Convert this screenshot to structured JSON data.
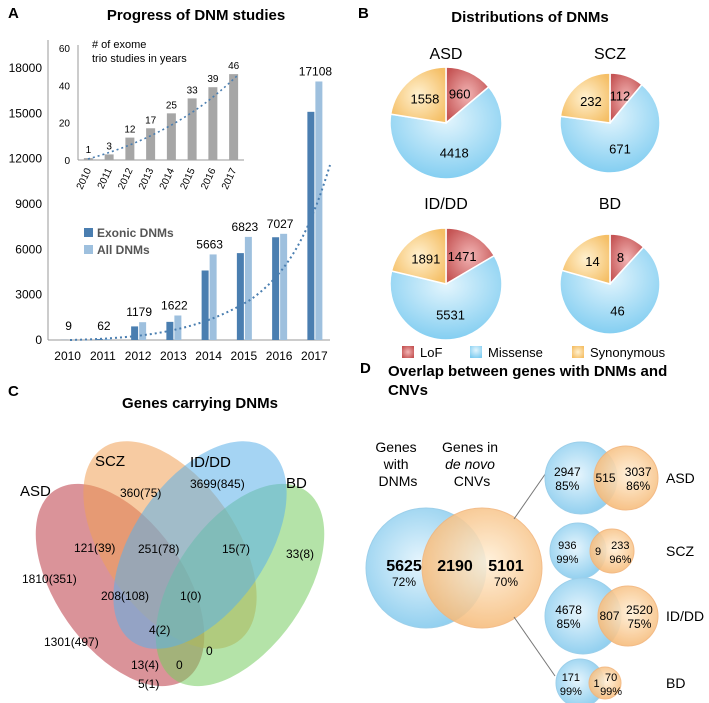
{
  "panels": {
    "a": {
      "letter": "A",
      "title": "Progress of DNM studies"
    },
    "b": {
      "letter": "B",
      "title": "Distributions of DNMs"
    },
    "c": {
      "letter": "C",
      "title": "Genes carrying DNMs"
    },
    "d": {
      "letter": "D",
      "title_line1": "Overlap between genes with DNMs and",
      "title_line2": "CNVs"
    }
  },
  "chart_data": [
    {
      "id": "dnm-progress",
      "type": "bar",
      "categories": [
        "2010",
        "2011",
        "2012",
        "2013",
        "2014",
        "2015",
        "2016",
        "2017"
      ],
      "series": [
        {
          "name": "Exonic DNMs",
          "color": "#4a7eb0",
          "values": [
            9,
            62,
            900,
            1200,
            4600,
            5750,
            6800,
            15100
          ]
        },
        {
          "name": "All DNMs",
          "color": "#9ec0de",
          "values": [
            9,
            62,
            1179,
            1622,
            5663,
            6823,
            7027,
            17108
          ]
        }
      ],
      "data_labels": [
        "9",
        "62",
        "1179",
        "1622",
        "5663",
        "6823",
        "7027",
        "17108"
      ],
      "yticks": [
        "0",
        "3000",
        "6000",
        "9000",
        "12000",
        "15000",
        "18000"
      ],
      "ylim": [
        0,
        18000
      ],
      "trendline": "dotted exponential fit",
      "legend": "center-left"
    },
    {
      "id": "exome-trio-studies",
      "type": "bar",
      "title": "# of exome trio studies in years",
      "categories": [
        "2010",
        "2011",
        "2012",
        "2013",
        "2014",
        "2015",
        "2016",
        "2017"
      ],
      "values": [
        1,
        3,
        12,
        17,
        25,
        33,
        39,
        46
      ],
      "color": "#a6a6a6",
      "yticks": [
        "0",
        "20",
        "40",
        "60"
      ],
      "ylim": [
        0,
        60
      ]
    },
    {
      "id": "dnm-distributions",
      "type": "pie",
      "legend": {
        "entries": [
          {
            "name": "LoF",
            "color": "#c95c5c"
          },
          {
            "name": "Missense",
            "color": "#8ad2f2"
          },
          {
            "name": "Synonymous",
            "color": "#f7c87a"
          }
        ],
        "position": "bottom"
      },
      "pies": [
        {
          "name": "ASD",
          "values": [
            960,
            4418,
            1558
          ]
        },
        {
          "name": "SCZ",
          "values": [
            112,
            671,
            232
          ]
        },
        {
          "name": "ID/DD",
          "values": [
            1471,
            5531,
            1891
          ]
        },
        {
          "name": "BD",
          "values": [
            8,
            46,
            14
          ]
        }
      ]
    },
    {
      "id": "genes-venn",
      "type": "venn",
      "sets": [
        "ASD",
        "SCZ",
        "ID/DD",
        "BD"
      ],
      "colors": {
        "ASD": "#c9525a",
        "SCZ": "#f0a05a",
        "ID/DD": "#66b4e8",
        "BD": "#7ed16a"
      },
      "regions": [
        "360(75)",
        "3699(845)",
        "33(8)",
        "121(39)",
        "251(78)",
        "15(7)",
        "1810(351)",
        "208(108)",
        "1(0)",
        "4(2)",
        "1301(497)",
        "13(4)",
        "0",
        "0",
        "5(1)"
      ]
    },
    {
      "id": "dnm-cnv-overlap",
      "type": "venn",
      "main": {
        "left_label": [
          "Genes",
          "with",
          "DNMs"
        ],
        "right_label_prefix": [
          "Genes in"
        ],
        "right_label_italic": "de novo",
        "right_label_suffix": "CNVs",
        "left_value": "5625",
        "left_pct": "72%",
        "overlap": "2190",
        "right_value": "5101",
        "right_pct": "70%"
      },
      "subsets": [
        {
          "name": "ASD",
          "left": "2947",
          "left_pct": "85%",
          "overlap": "515",
          "right": "3037",
          "right_pct": "86%"
        },
        {
          "name": "SCZ",
          "left": "936",
          "left_pct": "99%",
          "overlap": "9",
          "right": "233",
          "right_pct": "96%"
        },
        {
          "name": "ID/DD",
          "left": "4678",
          "left_pct": "85%",
          "overlap": "807",
          "right": "2520",
          "right_pct": "75%"
        },
        {
          "name": "BD",
          "left": "171",
          "left_pct": "99%",
          "overlap": "1",
          "right": "70",
          "right_pct": "99%"
        }
      ]
    }
  ]
}
